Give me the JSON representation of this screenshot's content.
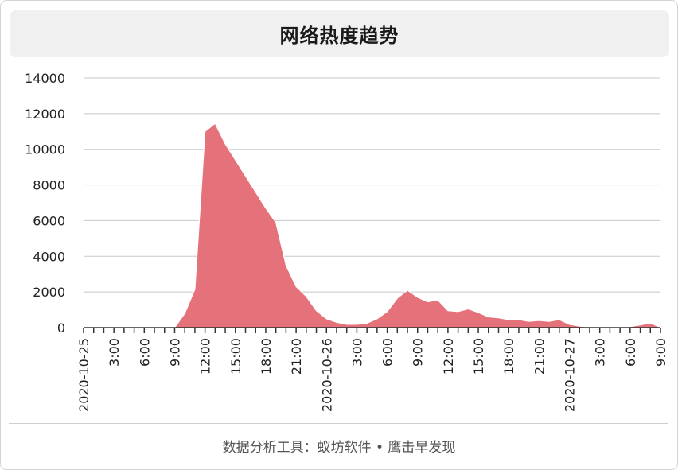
{
  "title": "网络热度趋势",
  "footer": {
    "text": "数据分析工具：蚁坊软件 • 鹰击早发现"
  },
  "colors": {
    "area_fill": "#e5727a",
    "area_stroke": "#ffffff",
    "grid": "#c8c8c8",
    "axis": "#333333",
    "text": "#222222"
  },
  "chart_data": {
    "type": "area",
    "title": "网络热度趋势",
    "xlabel": "",
    "ylabel": "",
    "ylim": [
      0,
      14000
    ],
    "yticks": [
      0,
      2000,
      4000,
      6000,
      8000,
      10000,
      12000,
      14000
    ],
    "grid": true,
    "legend": "none",
    "x": [
      "2020-10-25 00:00",
      "2020-10-25 01:00",
      "2020-10-25 02:00",
      "2020-10-25 03:00",
      "2020-10-25 04:00",
      "2020-10-25 05:00",
      "2020-10-25 06:00",
      "2020-10-25 07:00",
      "2020-10-25 08:00",
      "2020-10-25 09:00",
      "2020-10-25 10:00",
      "2020-10-25 11:00",
      "2020-10-25 12:00",
      "2020-10-25 13:00",
      "2020-10-25 14:00",
      "2020-10-25 15:00",
      "2020-10-25 16:00",
      "2020-10-25 17:00",
      "2020-10-25 18:00",
      "2020-10-25 19:00",
      "2020-10-25 20:00",
      "2020-10-25 21:00",
      "2020-10-25 22:00",
      "2020-10-25 23:00",
      "2020-10-26 00:00",
      "2020-10-26 01:00",
      "2020-10-26 02:00",
      "2020-10-26 03:00",
      "2020-10-26 04:00",
      "2020-10-26 05:00",
      "2020-10-26 06:00",
      "2020-10-26 07:00",
      "2020-10-26 08:00",
      "2020-10-26 09:00",
      "2020-10-26 10:00",
      "2020-10-26 11:00",
      "2020-10-26 12:00",
      "2020-10-26 13:00",
      "2020-10-26 14:00",
      "2020-10-26 15:00",
      "2020-10-26 16:00",
      "2020-10-26 17:00",
      "2020-10-26 18:00",
      "2020-10-26 19:00",
      "2020-10-26 20:00",
      "2020-10-26 21:00",
      "2020-10-26 22:00",
      "2020-10-26 23:00",
      "2020-10-27 00:00",
      "2020-10-27 01:00",
      "2020-10-27 02:00",
      "2020-10-27 03:00",
      "2020-10-27 04:00",
      "2020-10-27 05:00",
      "2020-10-27 06:00",
      "2020-10-27 07:00",
      "2020-10-27 08:00",
      "2020-10-27 09:00"
    ],
    "tick_labels": [
      "2020-10-25",
      "",
      "",
      "3:00",
      "",
      "",
      "6:00",
      "",
      "",
      "9:00",
      "",
      "",
      "12:00",
      "",
      "",
      "15:00",
      "",
      "",
      "18:00",
      "",
      "",
      "21:00",
      "",
      "",
      "2020-10-26",
      "",
      "",
      "3:00",
      "",
      "",
      "6:00",
      "",
      "",
      "9:00",
      "",
      "",
      "12:00",
      "",
      "",
      "15:00",
      "",
      "",
      "18:00",
      "",
      "",
      "21:00",
      "",
      "",
      "2020-10-27",
      "",
      "",
      "3:00",
      "",
      "",
      "6:00",
      "",
      "",
      "9:00"
    ],
    "series": [
      {
        "values": [
          0,
          0,
          0,
          0,
          0,
          0,
          0,
          0,
          0,
          0,
          800,
          2150,
          11000,
          11450,
          10300,
          9400,
          8500,
          7600,
          6700,
          5900,
          3500,
          2300,
          1750,
          950,
          500,
          300,
          180,
          180,
          250,
          500,
          900,
          1650,
          2100,
          1700,
          1450,
          1550,
          950,
          900,
          1050,
          850,
          600,
          550,
          450,
          450,
          350,
          400,
          350,
          450,
          180,
          80,
          30,
          0,
          0,
          0,
          60,
          150,
          260,
          0
        ]
      }
    ]
  }
}
